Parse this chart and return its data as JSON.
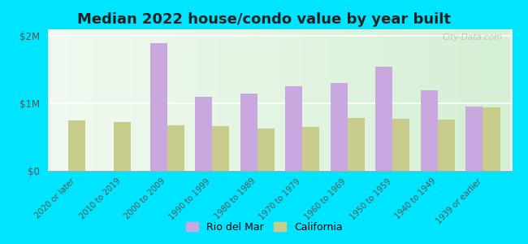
{
  "title": "Median 2022 house/condo value by year built",
  "categories": [
    "2020 or later",
    "2010 to 2019",
    "2000 to 2009",
    "1990 to 1999",
    "1980 to 1989",
    "1970 to 1979",
    "1960 to 1969",
    "1950 to 1959",
    "1940 to 1949",
    "1939 or earlier"
  ],
  "rio_del_mar": [
    null,
    null,
    1900000,
    1100000,
    1150000,
    1250000,
    1300000,
    1550000,
    1200000,
    950000
  ],
  "california": [
    750000,
    720000,
    680000,
    660000,
    630000,
    650000,
    790000,
    770000,
    760000,
    940000
  ],
  "rio_color": "#c9a8e0",
  "california_color": "#c8cc8a",
  "outer_bg": "#00e5ff",
  "yticks": [
    0,
    1000000,
    2000000
  ],
  "ytick_labels": [
    "$0",
    "$1M",
    "$2M"
  ],
  "ylim": [
    0,
    2100000
  ],
  "title_fontsize": 13,
  "legend_labels": [
    "Rio del Mar",
    "California"
  ],
  "watermark": "City-Data.com"
}
